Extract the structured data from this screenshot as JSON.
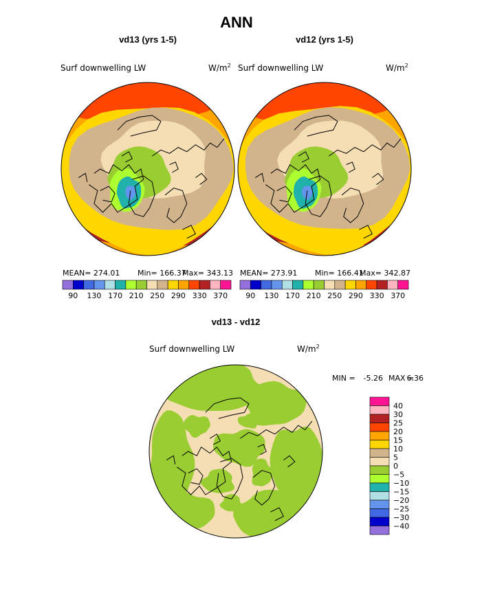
{
  "page_title": "ANN",
  "colors": {
    "abs_scale": [
      "#9370db",
      "#0000cd",
      "#4169e1",
      "#6495ed",
      "#b0e0e6",
      "#20b2aa",
      "#adff2f",
      "#9acd32",
      "#f5deb3",
      "#d2b48c",
      "#ffd700",
      "#ffa500",
      "#ff4500",
      "#b22222",
      "#ffb6c1",
      "#ff1493"
    ],
    "diff_scale": [
      "#ff1493",
      "#ffb6c1",
      "#b22222",
      "#ff4500",
      "#ffa500",
      "#ffd700",
      "#d2b48c",
      "#f5deb3",
      "#9acd32",
      "#adff2f",
      "#20b2aa",
      "#b0e0e6",
      "#6495ed",
      "#4169e1",
      "#0000cd",
      "#9370db"
    ],
    "coastline": "#000000"
  },
  "chart_data": [
    {
      "type": "heatmap",
      "projection": "north-polar-stereographic",
      "title": "vd13 (yrs 1-5)",
      "field_label": "Surf downwelling LW",
      "units_base": "W/m",
      "units_exp": "2",
      "stats": {
        "mean_text": "MEAN= 274.01",
        "min_text": "Min= 166.37",
        "max_text": "Max= 343.13",
        "mean": 274.01,
        "min": 166.37,
        "max": 343.13
      },
      "colorbar_labels": [
        "90",
        "130",
        "170",
        "210",
        "250",
        "290",
        "330",
        "370"
      ],
      "colorbar_levels": [
        90,
        110,
        130,
        150,
        170,
        190,
        210,
        230,
        250,
        270,
        290,
        310,
        330,
        350,
        370
      ]
    },
    {
      "type": "heatmap",
      "projection": "north-polar-stereographic",
      "title": "vd12 (yrs 1-5)",
      "field_label": "Surf downwelling LW",
      "units_base": "W/m",
      "units_exp": "2",
      "stats": {
        "mean_text": "MEAN= 273.91",
        "min_text": "Min= 166.41",
        "max_text": "Max= 342.87",
        "mean": 273.91,
        "min": 166.41,
        "max": 342.87
      },
      "colorbar_labels": [
        "90",
        "130",
        "170",
        "210",
        "250",
        "290",
        "330",
        "370"
      ],
      "colorbar_levels": [
        90,
        110,
        130,
        150,
        170,
        190,
        210,
        230,
        250,
        270,
        290,
        310,
        330,
        350,
        370
      ]
    },
    {
      "type": "heatmap",
      "projection": "north-polar-stereographic",
      "title": "vd13 - vd12",
      "field_label": "Surf downwelling LW",
      "units_base": "W/m",
      "units_exp": "2",
      "stats": {
        "min_label": "MIN =",
        "min_value": "-5.26",
        "max_label": "MAX =",
        "max_value": "6.36",
        "min": -5.26,
        "max": 6.36
      },
      "colorbar_labels": [
        "40",
        "30",
        "25",
        "20",
        "15",
        "10",
        "5",
        "0",
        "-5",
        "-10",
        "-15",
        "-20",
        "-25",
        "-30",
        "-40"
      ],
      "colorbar_levels": [
        40,
        30,
        25,
        20,
        15,
        10,
        5,
        0,
        -5,
        -10,
        -15,
        -20,
        -25,
        -30,
        -40
      ]
    }
  ]
}
